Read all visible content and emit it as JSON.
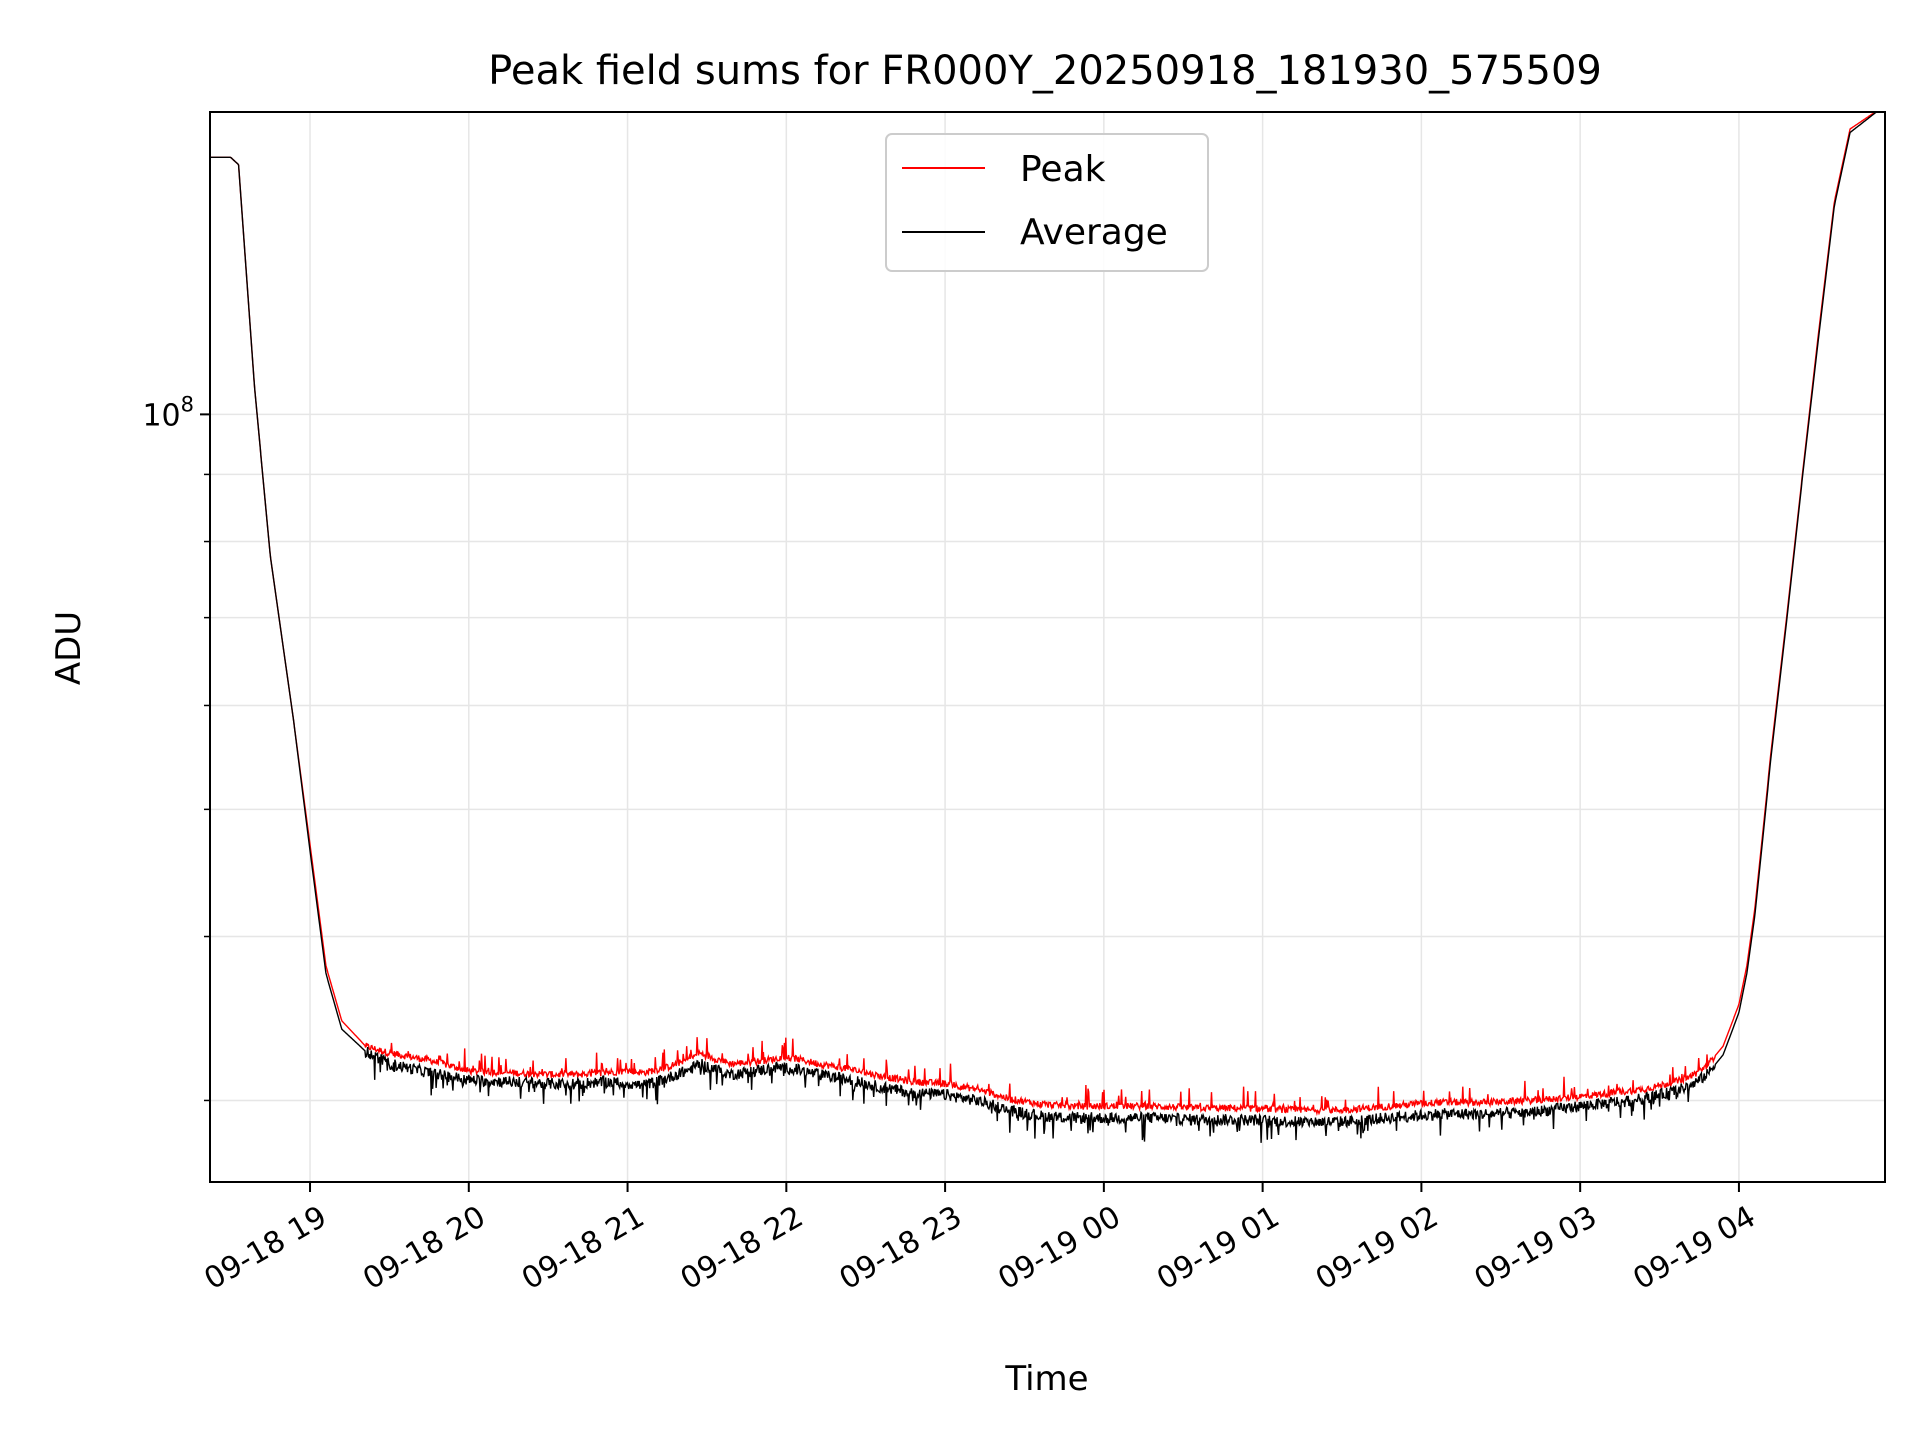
{
  "chart_data": {
    "type": "line",
    "title": "Peak field sums for FR000Y_20250918_181930_575509",
    "xlabel": "Time",
    "ylabel": "ADU",
    "y_scale": "log",
    "ylim": [
      26000000,
      170000000
    ],
    "xlim_hours": [
      -0.63,
      9.92
    ],
    "grid": true,
    "legend_position": "top-center",
    "colors": {
      "peak": "#ff0000",
      "average": "#000000",
      "grid": "#e6e6e6"
    },
    "x_ticks": [
      {
        "hour": 0,
        "label": "09-18 19"
      },
      {
        "hour": 1,
        "label": "09-18 20"
      },
      {
        "hour": 2,
        "label": "09-18 21"
      },
      {
        "hour": 3,
        "label": "09-18 22"
      },
      {
        "hour": 4,
        "label": "09-18 23"
      },
      {
        "hour": 5,
        "label": "09-19 00"
      },
      {
        "hour": 6,
        "label": "09-19 01"
      },
      {
        "hour": 7,
        "label": "09-19 02"
      },
      {
        "hour": 8,
        "label": "09-19 03"
      },
      {
        "hour": 9,
        "label": "09-19 04"
      }
    ],
    "y_major_ticks": [
      {
        "value": 100000000,
        "label_base": "10",
        "label_exp": "8"
      }
    ],
    "y_minor_ticks": [
      30000000,
      40000000,
      50000000,
      60000000,
      70000000,
      80000000,
      90000000
    ],
    "series": [
      {
        "name": "Peak",
        "color": "#ff0000",
        "x_hours": [
          -0.63,
          -0.5,
          -0.45,
          -0.35,
          -0.25,
          -0.1,
          0.0,
          0.1,
          0.2,
          0.35,
          0.5,
          0.75,
          1.0,
          1.25,
          1.5,
          1.7,
          1.85,
          2.0,
          2.1,
          2.25,
          2.4,
          2.45,
          2.55,
          2.65,
          2.8,
          2.95,
          3.05,
          3.2,
          3.4,
          3.6,
          3.8,
          4.0,
          4.2,
          4.4,
          4.6,
          4.8,
          5.0,
          5.3,
          5.6,
          5.9,
          6.2,
          6.5,
          6.8,
          7.1,
          7.4,
          7.7,
          8.0,
          8.2,
          8.4,
          8.6,
          8.7,
          8.8,
          8.9,
          9.0,
          9.05,
          9.1,
          9.15,
          9.2,
          9.3,
          9.4,
          9.5,
          9.6,
          9.7,
          9.92
        ],
        "values": [
          157000000,
          157000000,
          155000000,
          105000000,
          78000000,
          58000000,
          47000000,
          38000000,
          34500000,
          33000000,
          32600000,
          32200000,
          31600000,
          31500000,
          31400000,
          31400000,
          31500000,
          31600000,
          31500000,
          31800000,
          32300000,
          32600000,
          32300000,
          32000000,
          32100000,
          32300000,
          32300000,
          32000000,
          31700000,
          31300000,
          31000000,
          30900000,
          30600000,
          30100000,
          29800000,
          29700000,
          29700000,
          29700000,
          29600000,
          29600000,
          29500000,
          29500000,
          29700000,
          29900000,
          29900000,
          30000000,
          30200000,
          30400000,
          30600000,
          31000000,
          31300000,
          31900000,
          33000000,
          35500000,
          38000000,
          42000000,
          48000000,
          55000000,
          70000000,
          90000000,
          115000000,
          145000000,
          165000000,
          172000000
        ]
      },
      {
        "name": "Average",
        "color": "#000000",
        "x_hours": [
          -0.63,
          -0.5,
          -0.45,
          -0.35,
          -0.25,
          -0.1,
          0.0,
          0.1,
          0.2,
          0.35,
          0.5,
          0.75,
          1.0,
          1.25,
          1.5,
          1.7,
          1.85,
          2.0,
          2.1,
          2.25,
          2.4,
          2.45,
          2.55,
          2.65,
          2.8,
          2.95,
          3.05,
          3.2,
          3.4,
          3.6,
          3.8,
          4.0,
          4.2,
          4.4,
          4.6,
          4.8,
          5.0,
          5.3,
          5.6,
          5.9,
          6.2,
          6.5,
          6.8,
          7.1,
          7.4,
          7.7,
          8.0,
          8.2,
          8.4,
          8.6,
          8.7,
          8.8,
          8.9,
          9.0,
          9.05,
          9.1,
          9.15,
          9.2,
          9.3,
          9.4,
          9.5,
          9.6,
          9.7,
          9.92
        ],
        "values": [
          157000000,
          157000000,
          155000000,
          105000000,
          78000000,
          58000000,
          46500000,
          37500000,
          34000000,
          32700000,
          32000000,
          31500000,
          31100000,
          31000000,
          30900000,
          30900000,
          31000000,
          30900000,
          30800000,
          31200000,
          31700000,
          32000000,
          31700000,
          31400000,
          31600000,
          31800000,
          31700000,
          31400000,
          31100000,
          30700000,
          30400000,
          30300000,
          30000000,
          29500000,
          29200000,
          29100000,
          29100000,
          29100000,
          29000000,
          29000000,
          28900000,
          28900000,
          29100000,
          29300000,
          29300000,
          29400000,
          29700000,
          29900000,
          30100000,
          30500000,
          30800000,
          31400000,
          32500000,
          35000000,
          37500000,
          41500000,
          47500000,
          54500000,
          69500000,
          89500000,
          114000000,
          144000000,
          164000000,
          172000000
        ]
      }
    ]
  }
}
